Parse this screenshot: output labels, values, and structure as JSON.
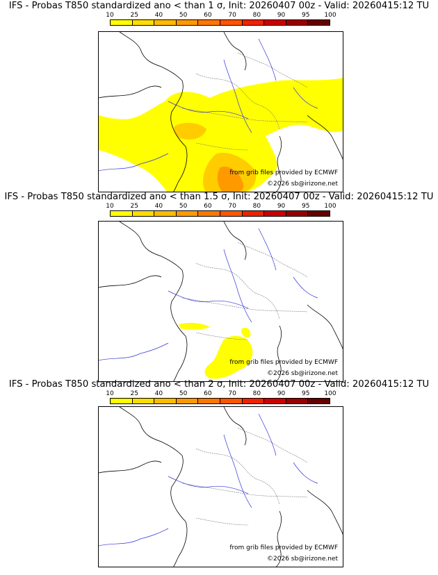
{
  "legend": {
    "ticks": [
      "10",
      "25",
      "40",
      "50",
      "60",
      "70",
      "80",
      "90",
      "95",
      "100"
    ],
    "colors": [
      "#ffff00",
      "#ffdd00",
      "#ffbb00",
      "#ff9900",
      "#ff7700",
      "#ff5500",
      "#ee2200",
      "#cc0000",
      "#990000",
      "#660000"
    ]
  },
  "panels": [
    {
      "title": "IFS - Probas T850  standardized ano < than 1 σ, Init: 20260407 00z - Valid: 20260415:12 TU",
      "probability_level": "moderate",
      "credit_source": "from grib files provided by ECMWF",
      "credit_copyright": "©2026 sb@irizone.net"
    },
    {
      "title": "IFS - Probas T850  standardized ano < than 1.5 σ, Init: 20260407 00z - Valid: 20260415:12 TU",
      "probability_level": "low",
      "credit_source": "from grib files provided by ECMWF",
      "credit_copyright": "©2026 sb@irizone.net"
    },
    {
      "title": "IFS - Probas T850  standardized ano < than 2 σ, Init: 20260407 00z - Valid: 20260415:12 TU",
      "probability_level": "none",
      "credit_source": "from grib files provided by ECMWF",
      "credit_copyright": "©2026 sb@irizone.net"
    }
  ]
}
